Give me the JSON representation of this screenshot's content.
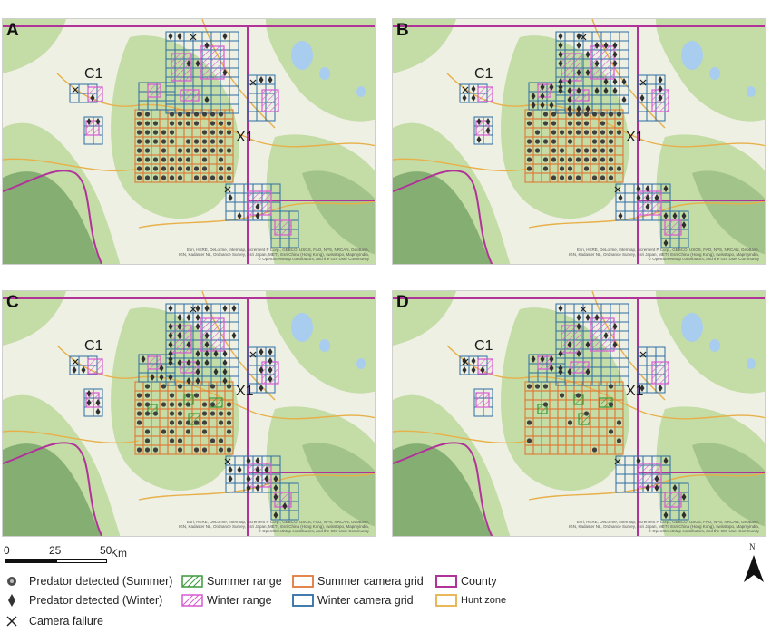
{
  "panels": [
    {
      "letter": "A",
      "c1_label": "C1",
      "x1_label": "X1"
    },
    {
      "letter": "B",
      "c1_label": "C1",
      "x1_label": "X1"
    },
    {
      "letter": "C",
      "c1_label": "C1",
      "x1_label": "X1"
    },
    {
      "letter": "D",
      "c1_label": "C1",
      "x1_label": "X1"
    }
  ],
  "attribution": "Esri, HERE, DeLorme, Intermap, increment P Corp., GEBCO, USGS, FAO, NPS, NRCAN, GeoBase, IGN, Kadaster NL, Ordnance Survey, Esri Japan, METI, Esri China (Hong Kong), swisstopo, Mapmyindia, © OpenStreetMap contributors, and the GIS User Community",
  "scalebar": {
    "labels": [
      "0",
      "25",
      "50"
    ],
    "unit": "Km"
  },
  "legend": {
    "predator_summer": "Predator detected (Summer)",
    "predator_winter": "Predator detected (Winter)",
    "camera_failure": "Camera failure",
    "summer_range": "Summer range",
    "winter_range": "Winter range",
    "summer_grid": "Summer camera grid",
    "winter_grid": "Winter camera grid",
    "county": "County",
    "hunt_zone": "Hunt zone"
  },
  "north_label": "N",
  "colors": {
    "summer_grid": "#e07a3a",
    "winter_grid": "#2e6da4",
    "county": "#b0339a",
    "hunt_zone": "#e8b04a",
    "summer_range": "#3a9a3a",
    "winter_range": "#d65ad0",
    "terrain_green": "#bcd89a",
    "terrain_light": "#eef0e4"
  }
}
